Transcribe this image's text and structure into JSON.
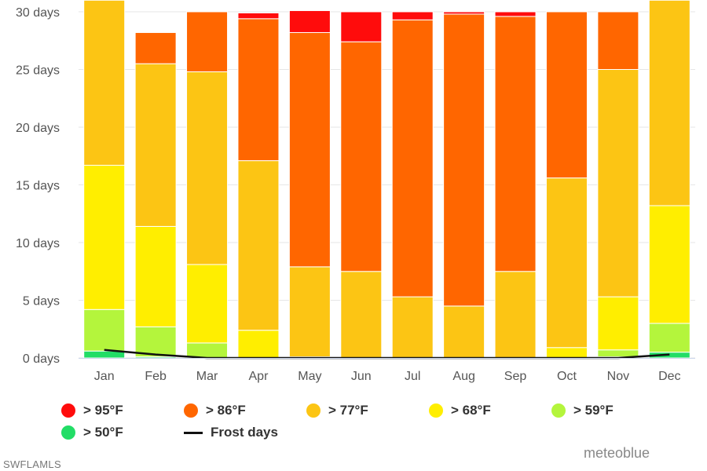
{
  "chart_data": {
    "type": "bar",
    "stacked": true,
    "categories": [
      "Jan",
      "Feb",
      "Mar",
      "Apr",
      "May",
      "Jun",
      "Jul",
      "Aug",
      "Sep",
      "Oct",
      "Nov",
      "Dec"
    ],
    "ylim": [
      0,
      30
    ],
    "yticks": [
      {
        "value": 0,
        "label": "0 days"
      },
      {
        "value": 5,
        "label": "5 days"
      },
      {
        "value": 10,
        "label": "10 days"
      },
      {
        "value": 15,
        "label": "15 days"
      },
      {
        "value": 20,
        "label": "20 days"
      },
      {
        "value": 25,
        "label": "25 days"
      },
      {
        "value": 30,
        "label": "30 days"
      }
    ],
    "grid": true,
    "legend_placement": "bottom",
    "series": [
      {
        "name": "> 50°F",
        "color": "#22dd66",
        "values": [
          0.6,
          0.1,
          0,
          0,
          0,
          0,
          0,
          0,
          0,
          0,
          0.1,
          0.5
        ]
      },
      {
        "name": "> 59°F",
        "color": "#b4f53c",
        "values": [
          3.6,
          2.6,
          1.3,
          0,
          0,
          0,
          0,
          0,
          0,
          0,
          0.6,
          2.5
        ]
      },
      {
        "name": "> 68°F",
        "color": "#ffee00",
        "values": [
          12.5,
          8.7,
          6.8,
          2.4,
          0.1,
          0,
          0,
          0,
          0,
          0.9,
          4.6,
          10.2
        ]
      },
      {
        "name": "> 77°F",
        "color": "#fcc514",
        "values": [
          14.3,
          14.1,
          16.7,
          14.7,
          7.8,
          7.5,
          5.3,
          4.5,
          7.5,
          14.7,
          19.7,
          17.8
        ]
      },
      {
        "name": "> 86°F",
        "color": "#ff6600",
        "values": [
          0,
          2.7,
          5.2,
          12.3,
          20.3,
          19.9,
          24.0,
          25.3,
          22.1,
          14.4,
          5.0,
          0
        ]
      },
      {
        "name": "> 95°F",
        "color": "#ff0c0c",
        "values": [
          0,
          0,
          0,
          0.5,
          1.9,
          2.6,
          0.7,
          0.2,
          0.4,
          0,
          0,
          0
        ]
      }
    ],
    "frost_days": {
      "name": "Frost days",
      "color": "#111111",
      "values": [
        0.7,
        0.3,
        0,
        0,
        0,
        0,
        0,
        0,
        0,
        0,
        0,
        0.3
      ]
    }
  },
  "legend": [
    {
      "label": "> 95°F",
      "color": "#ff0c0c",
      "kind": "dot"
    },
    {
      "label": "> 86°F",
      "color": "#ff6600",
      "kind": "dot"
    },
    {
      "label": "> 77°F",
      "color": "#fcc514",
      "kind": "dot"
    },
    {
      "label": "> 68°F",
      "color": "#ffee00",
      "kind": "dot"
    },
    {
      "label": "> 59°F",
      "color": "#b4f53c",
      "kind": "dot"
    },
    {
      "label": "> 50°F",
      "color": "#22dd66",
      "kind": "dot"
    },
    {
      "label": "Frost days",
      "color": "#111111",
      "kind": "line"
    }
  ],
  "brand": "meteoblue",
  "watermark": "SWFLAMLS"
}
